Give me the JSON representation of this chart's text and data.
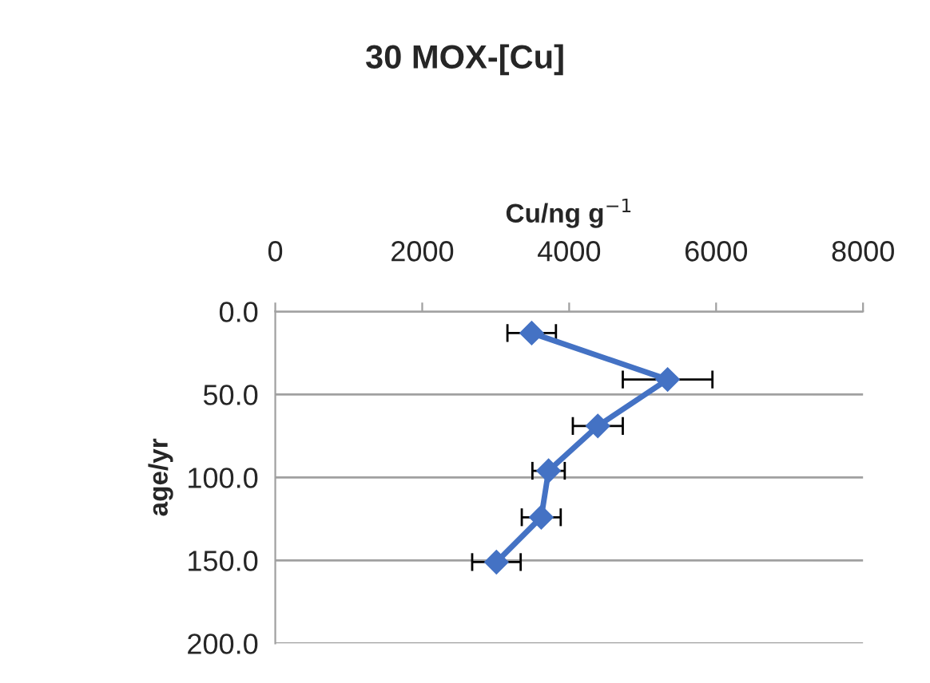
{
  "chart_data": {
    "type": "line",
    "title": "30 MOX-[Cu]",
    "xlabel": "Cu/ng g$^{−1}$",
    "ylabel": "age/yr",
    "x": [
      3490,
      5340,
      4390,
      3720,
      3620,
      3010
    ],
    "values": [
      13,
      41,
      69,
      96,
      124,
      151
    ],
    "xerrors": [
      330,
      610,
      340,
      220,
      265,
      330
    ],
    "color": "#4472c4",
    "marker": "diamond",
    "line_style": "solid",
    "xlim": [
      0,
      8000
    ],
    "xticks": [
      0,
      2000,
      4000,
      6000,
      8000
    ],
    "ylim": [
      200,
      0
    ],
    "yticks": [
      {
        "value": 0,
        "label": "0.0"
      },
      {
        "value": 50,
        "label": "50.0"
      },
      {
        "value": 100,
        "label": "100.0"
      },
      {
        "value": 150,
        "label": "150.0"
      },
      {
        "value": 200,
        "label": "200.0"
      }
    ],
    "grid": "y",
    "legend": false
  }
}
